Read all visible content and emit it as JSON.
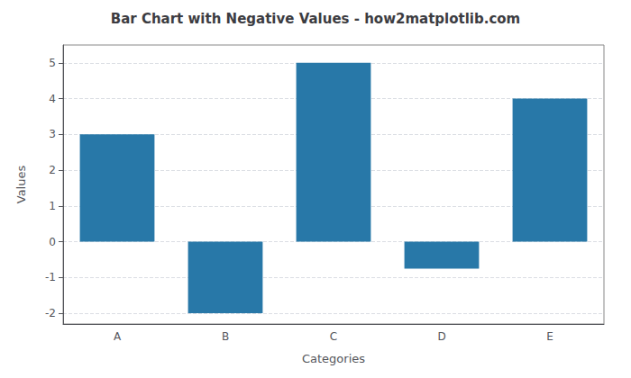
{
  "chart_data": {
    "type": "bar",
    "title": "Bar Chart with Negative Values - how2matplotlib.com",
    "xlabel": "Categories",
    "ylabel": "Values",
    "categories": [
      "A",
      "B",
      "C",
      "D",
      "E"
    ],
    "values": [
      3,
      -2,
      5,
      -0.75,
      4
    ],
    "color": "#2878a8",
    "ylim": [
      -2.3,
      5.5
    ],
    "yticks": [
      -2,
      -1,
      0,
      1,
      2,
      3,
      4,
      5
    ],
    "grid": true
  }
}
